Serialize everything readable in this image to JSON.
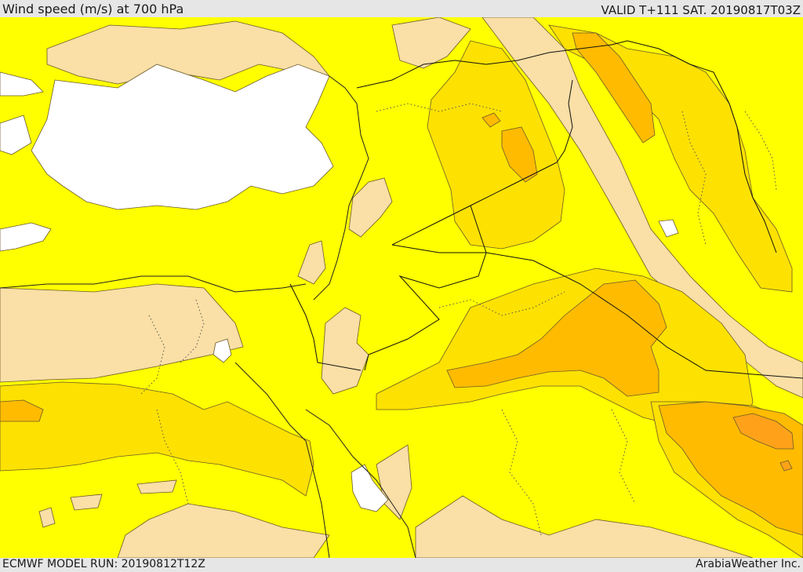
{
  "header": {
    "title": "Wind speed (m/s) at 700 hPa",
    "valid": "VALID T+111 SAT. 20190817T03Z"
  },
  "footer": {
    "model_run": "ECMWF MODEL RUN: 20190812T12Z",
    "credit": "ArabiaWeather Inc."
  },
  "colors": {
    "background_map": "#ffff00",
    "calm": "#fadfa6",
    "level_1": "#fde100",
    "level_2": "#ffbb00",
    "level_3": "#ffa21a",
    "water_white": "#ffffff"
  }
}
